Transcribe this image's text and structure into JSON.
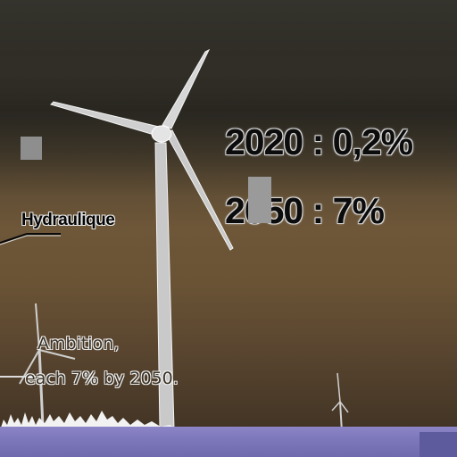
{
  "overlay": {
    "stat_2020": "2020 : 0,2%",
    "stat_2050": "2050 : 7%",
    "label": "Hydraulique"
  },
  "caption": {
    "line1": "Ambition,",
    "line2": "each 7% by 2050."
  },
  "colors": {
    "sky_top": "#34332c",
    "sky_mid": "#6e5638",
    "ground": "#8c86c8",
    "turbine": "#d9d9d9"
  }
}
